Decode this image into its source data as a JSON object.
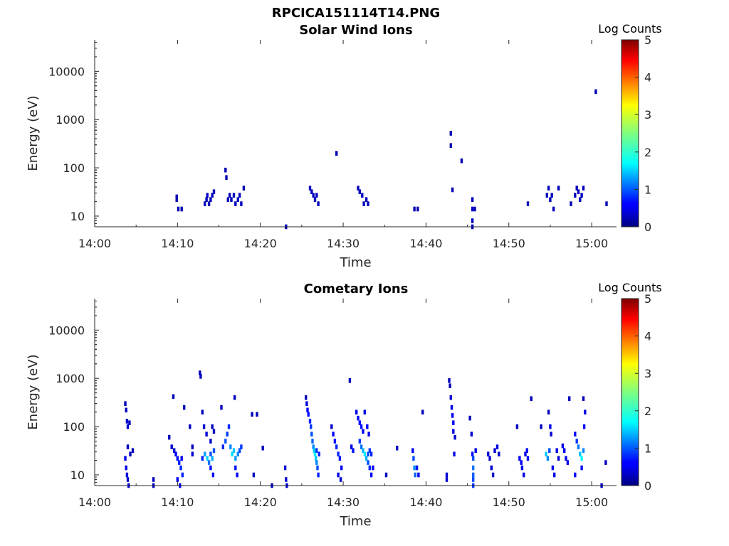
{
  "figure": {
    "title": "RPCICA151114T14.PNG"
  },
  "chart_data": [
    {
      "type": "heatmap",
      "title": "Solar Wind Ions",
      "xlabel": "Time",
      "ylabel": "Energy (eV)",
      "x_ticks": [
        "14:00",
        "14:10",
        "14:20",
        "14:30",
        "14:40",
        "14:50",
        "15:00"
      ],
      "xlim_minutes_after_14_00": [
        0,
        63
      ],
      "y_scale": "log",
      "y_ticks": [
        "10",
        "100",
        "1000",
        "10000"
      ],
      "ylim": [
        6,
        45000
      ],
      "colorbar": {
        "label": "Log Counts",
        "ticks": [
          "0",
          "1",
          "2",
          "3",
          "4",
          "5"
        ],
        "range": [
          0,
          5
        ],
        "colormap": "jet"
      },
      "points": [
        [
          9.9,
          22,
          0.25
        ],
        [
          9.9,
          25,
          0.25
        ],
        [
          10.1,
          14,
          0.25
        ],
        [
          10.5,
          14,
          0.25
        ],
        [
          13.3,
          18,
          0.3
        ],
        [
          13.5,
          22,
          0.3
        ],
        [
          13.6,
          27,
          0.3
        ],
        [
          13.8,
          18,
          0.3
        ],
        [
          14.0,
          22,
          0.3
        ],
        [
          14.2,
          27,
          0.3
        ],
        [
          14.4,
          32,
          0.3
        ],
        [
          15.8,
          90,
          0.25
        ],
        [
          15.9,
          63,
          0.25
        ],
        [
          16.1,
          22,
          0.3
        ],
        [
          16.3,
          27,
          0.3
        ],
        [
          16.5,
          22,
          0.3
        ],
        [
          16.8,
          27,
          0.3
        ],
        [
          17.0,
          18,
          0.3
        ],
        [
          17.3,
          22,
          0.3
        ],
        [
          17.5,
          27,
          0.3
        ],
        [
          17.7,
          18,
          0.3
        ],
        [
          18.0,
          38,
          0.25
        ],
        [
          23.1,
          6,
          0.25
        ],
        [
          26.0,
          38,
          0.3
        ],
        [
          26.2,
          32,
          0.3
        ],
        [
          26.4,
          27,
          0.3
        ],
        [
          26.6,
          22,
          0.3
        ],
        [
          26.8,
          27,
          0.3
        ],
        [
          27.0,
          18,
          0.3
        ],
        [
          29.2,
          200,
          0.25
        ],
        [
          31.8,
          38,
          0.3
        ],
        [
          32.0,
          32,
          0.3
        ],
        [
          32.3,
          27,
          0.3
        ],
        [
          32.5,
          18,
          0.3
        ],
        [
          32.8,
          22,
          0.3
        ],
        [
          33.0,
          18,
          0.3
        ],
        [
          38.6,
          14,
          0.25
        ],
        [
          39.0,
          14,
          0.25
        ],
        [
          43.0,
          520,
          0.25
        ],
        [
          43.0,
          290,
          0.25
        ],
        [
          43.2,
          35,
          0.25
        ],
        [
          44.3,
          140,
          0.25
        ],
        [
          45.6,
          22,
          0.3
        ],
        [
          45.6,
          14,
          0.3
        ],
        [
          45.6,
          8,
          0.3
        ],
        [
          45.6,
          6,
          0.3
        ],
        [
          45.9,
          14,
          0.3
        ],
        [
          52.3,
          18,
          0.25
        ],
        [
          54.6,
          27,
          0.3
        ],
        [
          54.8,
          38,
          0.3
        ],
        [
          55.0,
          22,
          0.3
        ],
        [
          55.2,
          27,
          0.3
        ],
        [
          55.4,
          14,
          0.3
        ],
        [
          56.0,
          38,
          0.25
        ],
        [
          57.5,
          18,
          0.25
        ],
        [
          58.0,
          27,
          0.3
        ],
        [
          58.2,
          38,
          0.3
        ],
        [
          58.4,
          32,
          0.3
        ],
        [
          58.6,
          22,
          0.3
        ],
        [
          58.8,
          27,
          0.3
        ],
        [
          59.0,
          38,
          0.3
        ],
        [
          60.5,
          3800,
          0.25
        ],
        [
          61.8,
          18,
          0.25
        ]
      ]
    },
    {
      "type": "heatmap",
      "title": "Cometary Ions",
      "xlabel": "Time",
      "ylabel": "Energy (eV)",
      "x_ticks": [
        "14:00",
        "14:10",
        "14:20",
        "14:30",
        "14:40",
        "14:50",
        "15:00"
      ],
      "xlim_minutes_after_14_00": [
        0,
        63
      ],
      "y_scale": "log",
      "y_ticks": [
        "10",
        "100",
        "1000",
        "10000"
      ],
      "ylim": [
        6,
        45000
      ],
      "colorbar": {
        "label": "Log Counts",
        "ticks": [
          "0",
          "1",
          "2",
          "3",
          "4",
          "5"
        ],
        "range": [
          0,
          5
        ],
        "colormap": "jet"
      },
      "points": [
        [
          3.7,
          300,
          0.3
        ],
        [
          3.8,
          220,
          0.3
        ],
        [
          3.9,
          130,
          0.4
        ],
        [
          4.0,
          100,
          0.4
        ],
        [
          4.2,
          120,
          0.3
        ],
        [
          3.7,
          22,
          0.5
        ],
        [
          3.8,
          14,
          0.5
        ],
        [
          3.9,
          10,
          0.5
        ],
        [
          4.0,
          8,
          0.4
        ],
        [
          4.1,
          6,
          0.4
        ],
        [
          4.0,
          38,
          0.3
        ],
        [
          4.3,
          27,
          0.3
        ],
        [
          4.6,
          32,
          0.3
        ],
        [
          7.1,
          8,
          0.3
        ],
        [
          7.1,
          6,
          0.3
        ],
        [
          9.0,
          60,
          0.3
        ],
        [
          9.3,
          38,
          0.4
        ],
        [
          9.6,
          32,
          0.4
        ],
        [
          9.8,
          27,
          0.6
        ],
        [
          10.0,
          22,
          0.7
        ],
        [
          10.2,
          18,
          0.8
        ],
        [
          10.4,
          14,
          0.8
        ],
        [
          10.6,
          10,
          0.8
        ],
        [
          10.0,
          8,
          0.6
        ],
        [
          10.3,
          6,
          0.6
        ],
        [
          10.5,
          22,
          0.6
        ],
        [
          9.5,
          420,
          0.3
        ],
        [
          10.8,
          250,
          0.3
        ],
        [
          11.5,
          100,
          0.3
        ],
        [
          11.8,
          27,
          0.4
        ],
        [
          11.8,
          38,
          0.3
        ],
        [
          12.7,
          1300,
          0.3
        ],
        [
          12.8,
          1100,
          0.3
        ],
        [
          13.0,
          200,
          0.3
        ],
        [
          13.2,
          100,
          0.4
        ],
        [
          13.0,
          22,
          0.8
        ],
        [
          13.3,
          27,
          1.4
        ],
        [
          13.6,
          22,
          1.7
        ],
        [
          13.8,
          18,
          1.2
        ],
        [
          14.0,
          27,
          1.0
        ],
        [
          14.2,
          22,
          1.5
        ],
        [
          14.4,
          32,
          1.0
        ],
        [
          14.0,
          14,
          0.7
        ],
        [
          14.3,
          10,
          0.6
        ],
        [
          13.5,
          70,
          0.4
        ],
        [
          14.2,
          100,
          0.3
        ],
        [
          14.0,
          50,
          0.4
        ],
        [
          14.4,
          80,
          0.3
        ],
        [
          15.5,
          38,
          0.8
        ],
        [
          15.8,
          50,
          1.0
        ],
        [
          16.0,
          70,
          0.9
        ],
        [
          16.2,
          100,
          0.8
        ],
        [
          16.4,
          38,
          1.3
        ],
        [
          16.6,
          27,
          1.7
        ],
        [
          16.8,
          32,
          1.6
        ],
        [
          17.0,
          22,
          1.4
        ],
        [
          17.3,
          27,
          1.3
        ],
        [
          17.5,
          32,
          1.0
        ],
        [
          17.7,
          38,
          0.9
        ],
        [
          17.0,
          14,
          0.7
        ],
        [
          17.2,
          10,
          0.6
        ],
        [
          16.9,
          400,
          0.3
        ],
        [
          15.3,
          250,
          0.3
        ],
        [
          19.2,
          10,
          0.3
        ],
        [
          19.0,
          180,
          0.3
        ],
        [
          19.6,
          180,
          0.3
        ],
        [
          20.3,
          36,
          0.3
        ],
        [
          21.4,
          6,
          0.3
        ],
        [
          23.0,
          14,
          0.4
        ],
        [
          23.1,
          8,
          0.4
        ],
        [
          23.2,
          6,
          0.4
        ],
        [
          25.5,
          400,
          0.3
        ],
        [
          25.6,
          300,
          0.5
        ],
        [
          25.7,
          220,
          0.6
        ],
        [
          25.8,
          180,
          0.7
        ],
        [
          26.0,
          130,
          0.8
        ],
        [
          26.1,
          100,
          0.9
        ],
        [
          26.2,
          70,
          1.0
        ],
        [
          26.3,
          50,
          1.1
        ],
        [
          26.4,
          38,
          1.3
        ],
        [
          26.5,
          32,
          1.6
        ],
        [
          26.6,
          27,
          1.8
        ],
        [
          26.7,
          22,
          1.6
        ],
        [
          26.8,
          18,
          1.3
        ],
        [
          26.9,
          14,
          1.0
        ],
        [
          27.0,
          10,
          0.8
        ],
        [
          26.8,
          32,
          0.9
        ],
        [
          27.1,
          27,
          0.8
        ],
        [
          28.6,
          100,
          0.4
        ],
        [
          28.8,
          70,
          0.6
        ],
        [
          29.0,
          50,
          0.7
        ],
        [
          29.2,
          38,
          0.8
        ],
        [
          29.4,
          27,
          0.8
        ],
        [
          29.6,
          22,
          0.7
        ],
        [
          29.8,
          14,
          0.6
        ],
        [
          29.4,
          10,
          0.5
        ],
        [
          29.7,
          8,
          0.4
        ],
        [
          30.8,
          900,
          0.3
        ],
        [
          31.0,
          38,
          0.5
        ],
        [
          31.2,
          32,
          0.7
        ],
        [
          31.6,
          200,
          0.5
        ],
        [
          31.8,
          150,
          0.6
        ],
        [
          32.0,
          120,
          0.7
        ],
        [
          32.2,
          100,
          0.7
        ],
        [
          32.4,
          80,
          0.6
        ],
        [
          32.6,
          200,
          0.5
        ],
        [
          32.0,
          50,
          0.9
        ],
        [
          32.2,
          38,
          1.2
        ],
        [
          32.4,
          32,
          1.5
        ],
        [
          32.6,
          27,
          1.8
        ],
        [
          32.8,
          22,
          1.5
        ],
        [
          33.0,
          18,
          1.0
        ],
        [
          33.2,
          14,
          0.8
        ],
        [
          33.4,
          10,
          0.6
        ],
        [
          33.0,
          27,
          1.0
        ],
        [
          33.2,
          32,
          0.9
        ],
        [
          33.4,
          27,
          0.8
        ],
        [
          33.6,
          14,
          0.6
        ],
        [
          32.9,
          100,
          0.6
        ],
        [
          33.1,
          70,
          0.5
        ],
        [
          35.2,
          10,
          0.3
        ],
        [
          36.5,
          36,
          0.3
        ],
        [
          38.4,
          32,
          0.6
        ],
        [
          38.5,
          22,
          1.0
        ],
        [
          38.6,
          14,
          1.3
        ],
        [
          38.7,
          10,
          1.1
        ],
        [
          38.9,
          14,
          0.7
        ],
        [
          39.1,
          10,
          0.6
        ],
        [
          39.6,
          200,
          0.3
        ],
        [
          42.5,
          10,
          0.4
        ],
        [
          42.5,
          8,
          0.4
        ],
        [
          42.8,
          900,
          0.3
        ],
        [
          42.9,
          700,
          0.3
        ],
        [
          43.0,
          400,
          0.4
        ],
        [
          43.1,
          250,
          0.5
        ],
        [
          43.2,
          170,
          0.6
        ],
        [
          43.3,
          120,
          0.5
        ],
        [
          43.3,
          80,
          0.5
        ],
        [
          43.5,
          60,
          0.4
        ],
        [
          43.4,
          27,
          0.5
        ],
        [
          45.3,
          150,
          0.3
        ],
        [
          45.5,
          70,
          0.4
        ],
        [
          45.6,
          27,
          0.7
        ],
        [
          45.7,
          22,
          1.0
        ],
        [
          45.7,
          14,
          1.2
        ],
        [
          45.7,
          10,
          1.1
        ],
        [
          45.7,
          8,
          1.0
        ],
        [
          45.7,
          6,
          0.9
        ],
        [
          46.0,
          32,
          0.5
        ],
        [
          47.5,
          27,
          0.4
        ],
        [
          47.7,
          22,
          0.4
        ],
        [
          47.9,
          14,
          0.4
        ],
        [
          48.1,
          10,
          0.4
        ],
        [
          48.3,
          32,
          0.4
        ],
        [
          48.6,
          38,
          0.5
        ],
        [
          48.8,
          27,
          0.4
        ],
        [
          51.0,
          100,
          0.3
        ],
        [
          51.3,
          22,
          0.6
        ],
        [
          51.5,
          18,
          0.6
        ],
        [
          51.6,
          14,
          0.5
        ],
        [
          51.8,
          10,
          0.5
        ],
        [
          52.0,
          27,
          0.5
        ],
        [
          52.2,
          32,
          0.6
        ],
        [
          52.3,
          22,
          0.6
        ],
        [
          52.7,
          380,
          0.3
        ],
        [
          53.9,
          100,
          0.3
        ],
        [
          54.5,
          27,
          1.6
        ],
        [
          54.7,
          22,
          1.3
        ],
        [
          54.9,
          32,
          1.0
        ],
        [
          55.0,
          100,
          0.5
        ],
        [
          55.1,
          70,
          0.4
        ],
        [
          54.8,
          200,
          0.3
        ],
        [
          55.3,
          14,
          0.6
        ],
        [
          55.5,
          10,
          0.5
        ],
        [
          55.8,
          32,
          0.5
        ],
        [
          56.0,
          22,
          0.4
        ],
        [
          56.5,
          40,
          0.5
        ],
        [
          56.7,
          32,
          0.6
        ],
        [
          56.9,
          22,
          0.5
        ],
        [
          57.1,
          18,
          0.5
        ],
        [
          57.3,
          380,
          0.3
        ],
        [
          58.0,
          70,
          0.6
        ],
        [
          58.2,
          50,
          0.9
        ],
        [
          58.4,
          38,
          1.2
        ],
        [
          58.6,
          27,
          1.6
        ],
        [
          58.8,
          22,
          1.9
        ],
        [
          59.0,
          32,
          1.3
        ],
        [
          59.1,
          100,
          0.6
        ],
        [
          59.2,
          200,
          0.5
        ],
        [
          59.0,
          380,
          0.3
        ],
        [
          58.8,
          14,
          0.7
        ],
        [
          58.0,
          10,
          0.6
        ],
        [
          61.2,
          6,
          0.3
        ],
        [
          61.7,
          18,
          0.3
        ]
      ]
    }
  ]
}
